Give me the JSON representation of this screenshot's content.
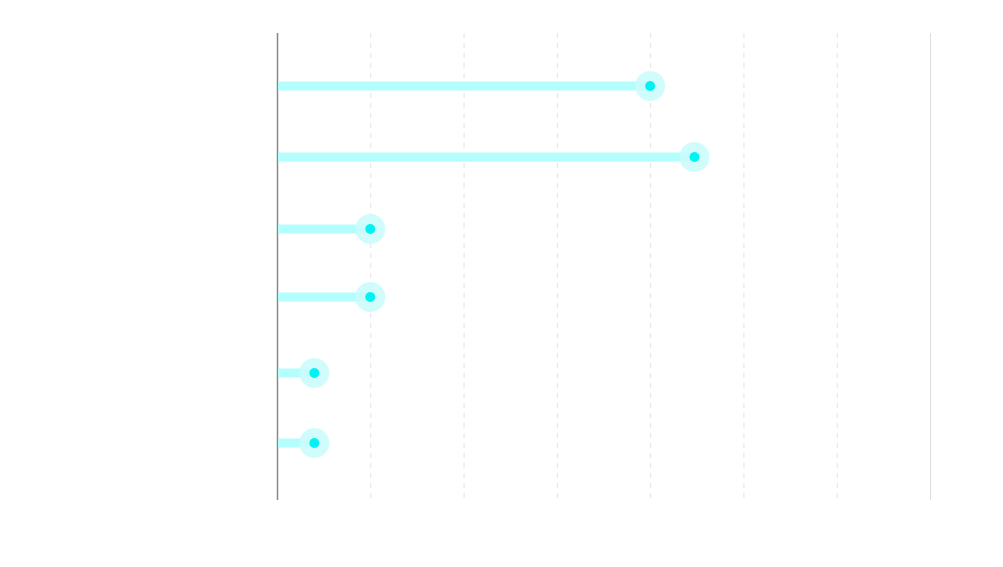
{
  "chart_data": {
    "type": "lollipop",
    "orientation": "horizontal",
    "categories": [
      "",
      "",
      "",
      "",
      "",
      ""
    ],
    "values": [
      8.0,
      8.95,
      2.0,
      2.0,
      0.8,
      0.8
    ],
    "xlim": [
      0,
      14
    ],
    "x_gridlines": [
      0,
      2,
      4,
      6,
      8,
      10,
      12,
      14
    ],
    "x_tick_labels": [],
    "grid": true,
    "title": "",
    "xlabel": "",
    "ylabel": "",
    "colors": {
      "stem": "#b3fdfd",
      "dot": "#00f2f2",
      "halo": "#c9fcfc",
      "axis": "#888888",
      "grid": "#e3e3e3",
      "right_border": "#dddddd"
    }
  }
}
